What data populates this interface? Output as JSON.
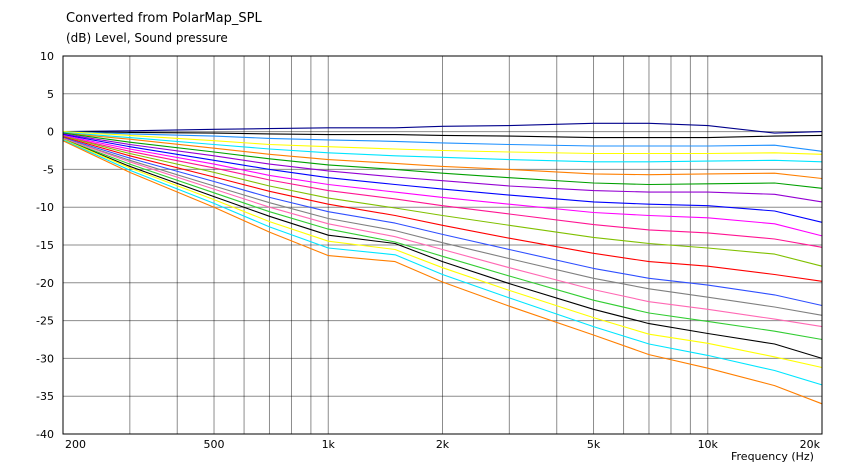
{
  "chart_data": {
    "type": "line",
    "title": "Converted from PolarMap_SPL",
    "ylabel": "(dB)  Level, Sound pressure",
    "xlabel": "Frequency  (Hz)",
    "x_scale": "log",
    "xlim": [
      200,
      20000
    ],
    "ylim": [
      -40,
      10
    ],
    "grid": true,
    "legend": "none",
    "x_tick_labels": [
      {
        "value": 200,
        "label": "200"
      },
      {
        "value": 500,
        "label": "500"
      },
      {
        "value": 1000,
        "label": "1k"
      },
      {
        "value": 2000,
        "label": "2k"
      },
      {
        "value": 5000,
        "label": "5k"
      },
      {
        "value": 10000,
        "label": "10k"
      },
      {
        "value": 20000,
        "label": "20k"
      }
    ],
    "y_tick_labels": [
      {
        "value": 10,
        "label": "10"
      },
      {
        "value": 5,
        "label": "5"
      },
      {
        "value": 0,
        "label": "0"
      },
      {
        "value": -5,
        "label": "-5"
      },
      {
        "value": -10,
        "label": "-10"
      },
      {
        "value": -15,
        "label": "-15"
      },
      {
        "value": -20,
        "label": "-20"
      },
      {
        "value": -25,
        "label": "-25"
      },
      {
        "value": -30,
        "label": "-30"
      },
      {
        "value": -35,
        "label": "-35"
      },
      {
        "value": -40,
        "label": "-40"
      }
    ],
    "x": [
      200,
      300,
      500,
      700,
      1000,
      1500,
      2000,
      3000,
      5000,
      7000,
      10000,
      15000,
      20000
    ],
    "series": [
      {
        "color": "#00008b",
        "values": [
          0,
          0.1,
          0.3,
          0.4,
          0.5,
          0.5,
          0.7,
          0.8,
          1.1,
          1.1,
          0.8,
          -0.2,
          0
        ]
      },
      {
        "color": "#000000",
        "values": [
          0,
          -0.1,
          -0.2,
          -0.3,
          -0.4,
          -0.4,
          -0.5,
          -0.6,
          -0.8,
          -0.8,
          -0.8,
          -0.6,
          -0.5
        ]
      },
      {
        "color": "#1e90ff",
        "values": [
          0,
          -0.3,
          -0.6,
          -0.9,
          -1.1,
          -1.3,
          -1.5,
          -1.7,
          -1.9,
          -1.9,
          -1.9,
          -1.8,
          -2.6
        ]
      },
      {
        "color": "#ffff00",
        "values": [
          0,
          -0.5,
          -1.2,
          -1.7,
          -2.0,
          -2.3,
          -2.5,
          -2.7,
          -2.9,
          -2.9,
          -2.9,
          -2.8,
          -3.0
        ]
      },
      {
        "color": "#00e5ff",
        "values": [
          -0.1,
          -0.8,
          -1.7,
          -2.3,
          -2.8,
          -3.2,
          -3.4,
          -3.7,
          -4.0,
          -4.0,
          -3.9,
          -3.8,
          -4.0
        ]
      },
      {
        "color": "#ff7f00",
        "values": [
          -0.2,
          -1.0,
          -2.2,
          -3.0,
          -3.7,
          -4.2,
          -4.6,
          -5.0,
          -5.6,
          -5.7,
          -5.6,
          -5.5,
          -6.2
        ]
      },
      {
        "color": "#00a000",
        "values": [
          -0.2,
          -1.4,
          -2.7,
          -3.6,
          -4.4,
          -5.0,
          -5.5,
          -6.1,
          -6.8,
          -7.0,
          -6.9,
          -6.8,
          -7.5
        ]
      },
      {
        "color": "#9400d3",
        "values": [
          -0.3,
          -1.7,
          -3.2,
          -4.3,
          -5.2,
          -6.0,
          -6.5,
          -7.2,
          -7.8,
          -8.0,
          -8.0,
          -8.3,
          -9.3
        ]
      },
      {
        "color": "#0000ff",
        "values": [
          -0.4,
          -2.0,
          -3.8,
          -5.0,
          -6.1,
          -7.0,
          -7.6,
          -8.4,
          -9.3,
          -9.6,
          -9.8,
          -10.5,
          -12.0
        ]
      },
      {
        "color": "#ff00ff",
        "values": [
          -0.5,
          -2.3,
          -4.3,
          -5.8,
          -7.0,
          -8.0,
          -8.7,
          -9.6,
          -10.7,
          -11.1,
          -11.4,
          -12.2,
          -13.8
        ]
      },
      {
        "color": "#ff1493",
        "values": [
          -0.6,
          -2.6,
          -4.8,
          -6.4,
          -7.8,
          -8.9,
          -9.8,
          -10.9,
          -12.3,
          -13.0,
          -13.4,
          -14.2,
          -15.3
        ]
      },
      {
        "color": "#80c000",
        "values": [
          -0.6,
          -2.9,
          -5.4,
          -7.2,
          -8.8,
          -10.1,
          -11.1,
          -12.4,
          -14.0,
          -14.8,
          -15.4,
          -16.2,
          -17.8
        ]
      },
      {
        "color": "#ff0000",
        "values": [
          -0.7,
          -3.2,
          -6.0,
          -7.9,
          -9.6,
          -11.1,
          -12.4,
          -14.1,
          -16.1,
          -17.2,
          -17.8,
          -18.9,
          -19.8
        ]
      },
      {
        "color": "#2f4fff",
        "values": [
          -0.8,
          -3.5,
          -6.6,
          -8.7,
          -10.6,
          -12.1,
          -13.6,
          -15.6,
          -18.1,
          -19.4,
          -20.3,
          -21.6,
          -23.0
        ]
      },
      {
        "color": "#808080",
        "values": [
          -0.9,
          -3.8,
          -7.2,
          -9.4,
          -11.5,
          -13.1,
          -14.7,
          -16.8,
          -19.4,
          -20.8,
          -21.9,
          -23.2,
          -24.3
        ]
      },
      {
        "color": "#ff69b4",
        "values": [
          -0.9,
          -4.0,
          -7.6,
          -10.0,
          -12.2,
          -13.9,
          -15.6,
          -18.0,
          -20.9,
          -22.5,
          -23.5,
          -24.8,
          -25.8
        ]
      },
      {
        "color": "#32cd32",
        "values": [
          -1.0,
          -4.3,
          -8.1,
          -10.6,
          -12.9,
          -14.6,
          -16.5,
          -19.1,
          -22.3,
          -24.0,
          -25.1,
          -26.4,
          -27.5
        ]
      },
      {
        "color": "#000000",
        "values": [
          -1.0,
          -4.6,
          -8.6,
          -11.2,
          -13.7,
          -14.8,
          -17.2,
          -20.1,
          -23.5,
          -25.4,
          -26.7,
          -28.1,
          -30.0
        ]
      },
      {
        "color": "#ffff00",
        "values": [
          -1.0,
          -4.8,
          -9.0,
          -11.9,
          -14.5,
          -15.6,
          -18.0,
          -21.0,
          -24.6,
          -26.8,
          -28.0,
          -29.8,
          -31.2
        ]
      },
      {
        "color": "#00e5ff",
        "values": [
          -1.1,
          -5.1,
          -9.5,
          -12.6,
          -15.4,
          -16.3,
          -18.9,
          -22.0,
          -25.8,
          -28.1,
          -29.6,
          -31.6,
          -33.5
        ]
      },
      {
        "color": "#ff7f00",
        "values": [
          -1.2,
          -5.4,
          -10.0,
          -13.3,
          -16.4,
          -17.2,
          -19.9,
          -23.1,
          -26.9,
          -29.5,
          -31.3,
          -33.6,
          -36.0
        ]
      }
    ]
  }
}
